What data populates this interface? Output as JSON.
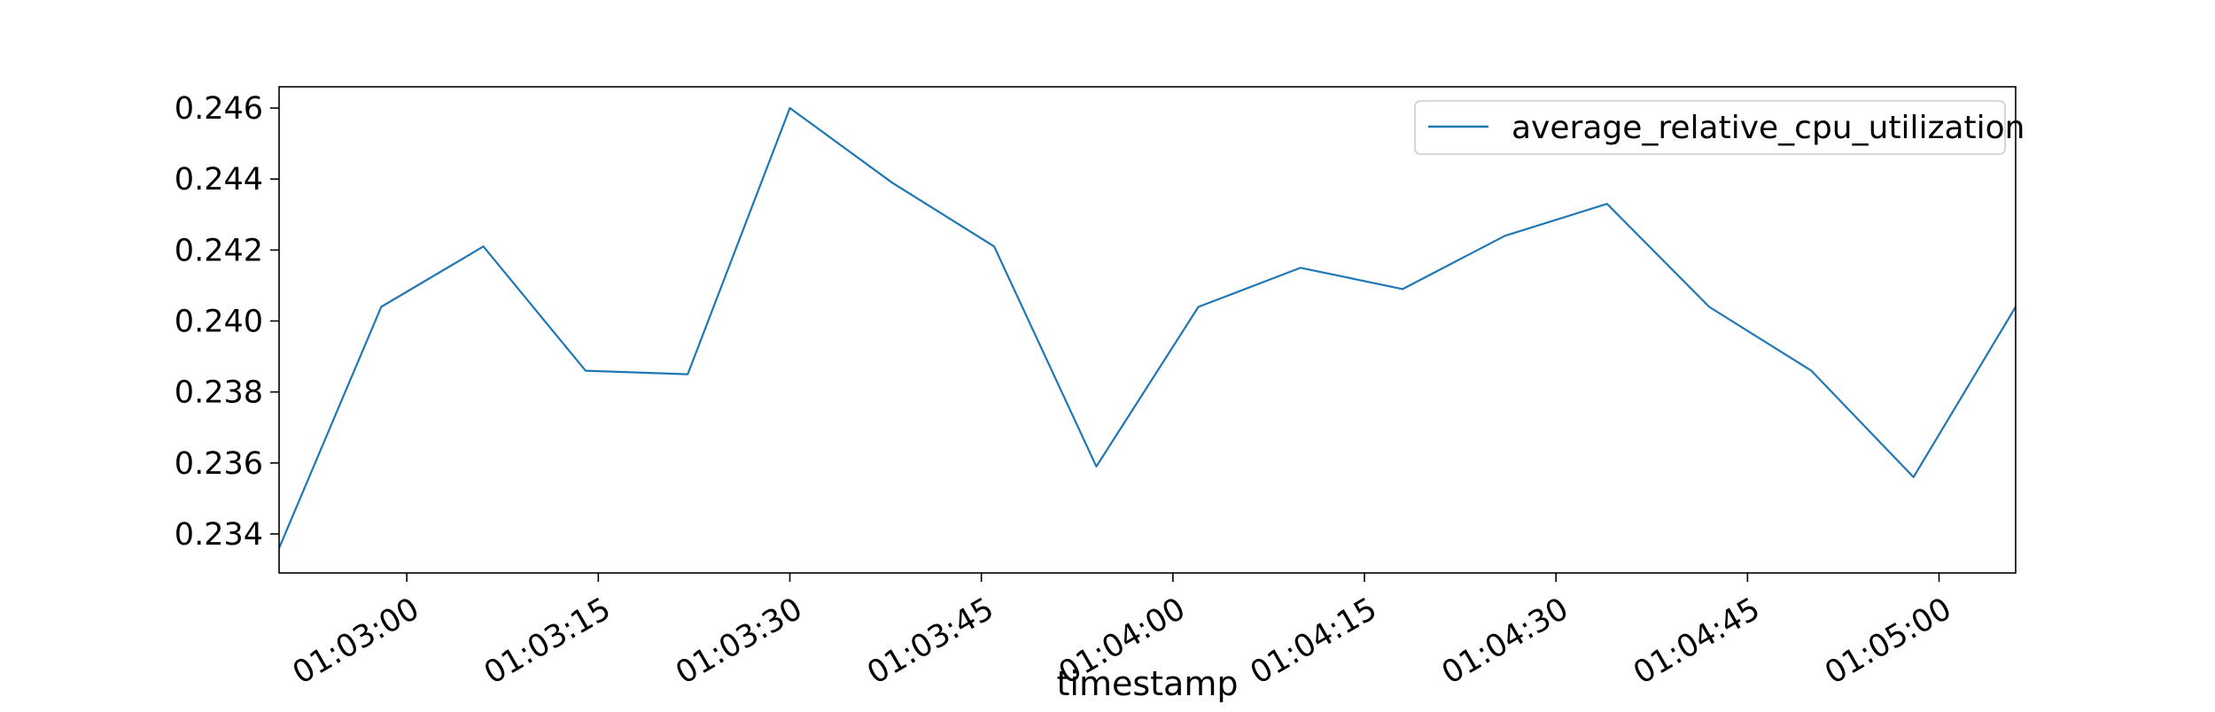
{
  "chart_data": {
    "type": "line",
    "title": "",
    "xlabel": "timestamp",
    "ylabel": "",
    "x_ticks": [
      "01:03:00",
      "01:03:15",
      "01:03:30",
      "01:03:45",
      "01:04:00",
      "01:04:15",
      "01:04:30",
      "01:04:45",
      "01:05:00"
    ],
    "y_ticks": [
      "0.234",
      "0.236",
      "0.238",
      "0.240",
      "0.242",
      "0.244",
      "0.246"
    ],
    "xlim": [
      "01:02:50",
      "01:05:06"
    ],
    "ylim": [
      0.2329,
      0.2466
    ],
    "grid": false,
    "legend": {
      "position": "top-right",
      "entries": [
        "average_relative_cpu_utilization"
      ]
    },
    "series": [
      {
        "name": "average_relative_cpu_utilization",
        "color": "#1f77b4",
        "x": [
          "01:02:50",
          "01:02:58",
          "01:03:06",
          "01:03:14",
          "01:03:22",
          "01:03:30",
          "01:03:38",
          "01:03:46",
          "01:03:54",
          "01:04:02",
          "01:04:10",
          "01:04:18",
          "01:04:26",
          "01:04:34",
          "01:04:42",
          "01:04:50",
          "01:04:58",
          "01:05:06"
        ],
        "values": [
          0.2336,
          0.2404,
          0.2421,
          0.2386,
          0.2385,
          0.246,
          0.2439,
          0.2421,
          0.2359,
          0.2404,
          0.2415,
          0.2409,
          0.2424,
          0.2433,
          0.2404,
          0.2386,
          0.2356,
          0.2404
        ]
      }
    ]
  }
}
